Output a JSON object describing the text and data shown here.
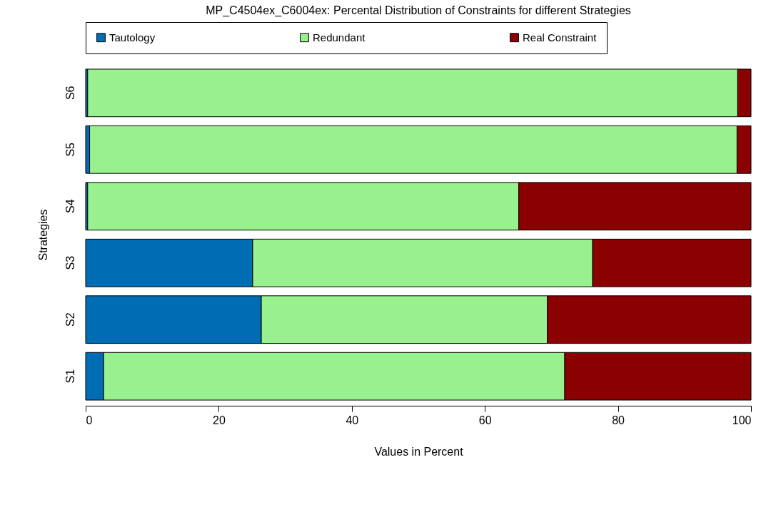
{
  "chart_data": {
    "type": "bar",
    "orientation": "horizontal",
    "stacked": true,
    "title": "MP_C4504ex_C6004ex: Percental Distribution of Constraints for different Strategies",
    "xlabel": "Values in Percent",
    "ylabel": "Strategies",
    "categories": [
      "S6",
      "S5",
      "S4",
      "S3",
      "S2",
      "S1"
    ],
    "series": [
      {
        "name": "Tautology",
        "color": "#006cb3",
        "values": [
          0.3,
          0.6,
          0.3,
          25.1,
          26.4,
          2.7
        ]
      },
      {
        "name": "Redundant",
        "color": "#98f08e",
        "values": [
          97.7,
          97.3,
          64.8,
          51.1,
          43.0,
          69.3
        ]
      },
      {
        "name": "Real Constraint",
        "color": "#8b0000",
        "values": [
          2.0,
          2.1,
          34.9,
          23.8,
          30.6,
          28.0
        ]
      }
    ],
    "xlim": [
      0,
      100
    ],
    "xticks": [
      0,
      20,
      40,
      60,
      80,
      100
    ],
    "grid": false,
    "legend": "top"
  }
}
